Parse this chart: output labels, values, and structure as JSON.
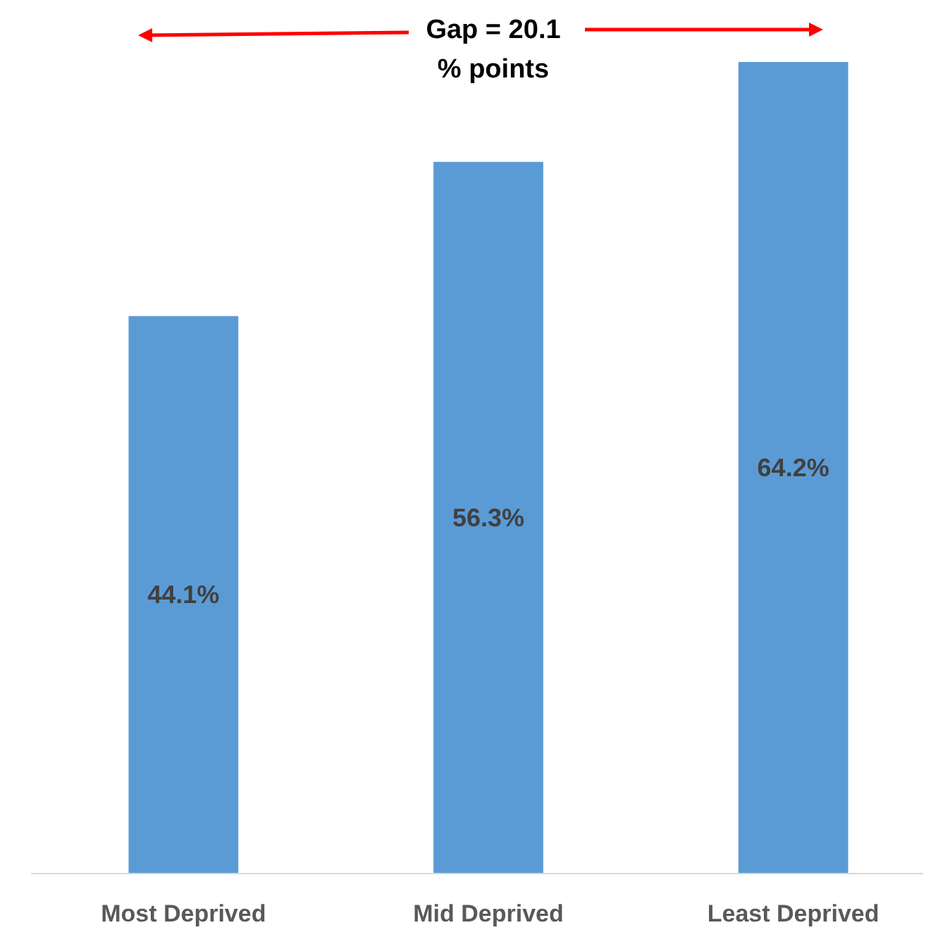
{
  "chart_data": {
    "type": "bar",
    "categories": [
      "Most Deprived",
      "Mid Deprived",
      "Least Deprived"
    ],
    "values": [
      44.1,
      56.3,
      64.2
    ],
    "color": "#5b9bd5",
    "value_labels": [
      "44.1%",
      "56.3%",
      "64.2%"
    ],
    "annotations": [
      "Gap = 20.1\n% points"
    ]
  }
}
